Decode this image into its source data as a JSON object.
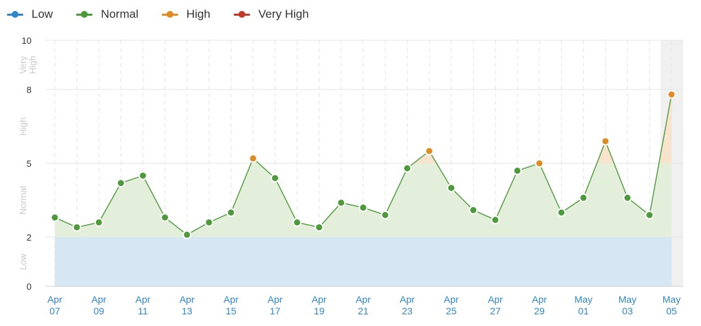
{
  "legend": {
    "items": [
      {
        "label": "Low",
        "color": "#2e86c8"
      },
      {
        "label": "Normal",
        "color": "#4d9a3a"
      },
      {
        "label": "High",
        "color": "#e08a22"
      },
      {
        "label": "Very High",
        "color": "#c0392b"
      }
    ]
  },
  "chart_data": {
    "type": "area",
    "x_labels": [
      [
        "Apr",
        "07"
      ],
      [
        "Apr",
        "09"
      ],
      [
        "Apr",
        "11"
      ],
      [
        "Apr",
        "13"
      ],
      [
        "Apr",
        "15"
      ],
      [
        "Apr",
        "17"
      ],
      [
        "Apr",
        "19"
      ],
      [
        "Apr",
        "21"
      ],
      [
        "Apr",
        "23"
      ],
      [
        "Apr",
        "25"
      ],
      [
        "Apr",
        "27"
      ],
      [
        "Apr",
        "29"
      ],
      [
        "May",
        "01"
      ],
      [
        "May",
        "03"
      ],
      [
        "May",
        "05"
      ]
    ],
    "dates": [
      "Apr 07",
      "Apr 08",
      "Apr 09",
      "Apr 10",
      "Apr 11",
      "Apr 12",
      "Apr 13",
      "Apr 14",
      "Apr 15",
      "Apr 16",
      "Apr 17",
      "Apr 18",
      "Apr 19",
      "Apr 20",
      "Apr 21",
      "Apr 22",
      "Apr 23",
      "Apr 24",
      "Apr 25",
      "Apr 26",
      "Apr 27",
      "Apr 28",
      "Apr 29",
      "Apr 30",
      "May 01",
      "May 02",
      "May 03",
      "May 04",
      "May 05"
    ],
    "values": [
      2.8,
      2.4,
      2.6,
      4.2,
      4.5,
      2.8,
      2.1,
      2.6,
      3.0,
      5.2,
      4.4,
      2.6,
      2.4,
      3.4,
      3.2,
      2.9,
      4.8,
      5.5,
      4.0,
      3.1,
      2.7,
      4.7,
      5.0,
      3.0,
      3.6,
      5.9,
      3.6,
      2.9,
      7.8
    ],
    "levels": [
      "normal",
      "normal",
      "normal",
      "normal",
      "normal",
      "normal",
      "normal",
      "normal",
      "normal",
      "high",
      "normal",
      "normal",
      "normal",
      "normal",
      "normal",
      "normal",
      "normal",
      "high",
      "normal",
      "normal",
      "normal",
      "normal",
      "high",
      "normal",
      "normal",
      "high",
      "normal",
      "normal",
      "high"
    ],
    "y_ticks": [
      0,
      2,
      5,
      8,
      10
    ],
    "ylim": [
      0,
      10
    ],
    "bands": [
      {
        "label": "Low",
        "from": 0,
        "to": 2
      },
      {
        "label": "Normal",
        "from": 2,
        "to": 5
      },
      {
        "label": "High",
        "from": 5,
        "to": 8
      },
      {
        "label": "Very High",
        "from": 8,
        "to": 10
      }
    ],
    "colors": {
      "normal_line": "#4d9a3a",
      "normal_fill": "#e3eedb",
      "low_fill": "#d6e6f2",
      "high_point": "#e08a22",
      "high_fill": "#f8e3cf",
      "axis_label": "#2e86c8",
      "band_label": "#c8c8c8"
    },
    "highlight_last": true
  }
}
